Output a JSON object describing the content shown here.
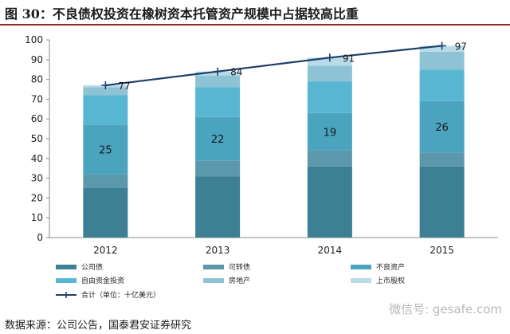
{
  "title": "图 30：不良债权投资在橡树资本托管资产规模中占据较高比重",
  "source": "数据来源：公司公告，国泰君安证券研究",
  "watermark": "微信号: gesafe.com",
  "chart_data": {
    "type": "bar",
    "stacked": true,
    "categories": [
      "2012",
      "2013",
      "2014",
      "2015"
    ],
    "ylim": [
      0,
      100
    ],
    "yticks": [
      0,
      10,
      20,
      30,
      40,
      50,
      60,
      70,
      80,
      90,
      100
    ],
    "grid": false,
    "legend_position": "bottom",
    "series": [
      {
        "name": "公司债",
        "color": "#3d7f93",
        "values": [
          25,
          31,
          36,
          36
        ]
      },
      {
        "name": "可转债",
        "color": "#5b98ab",
        "values": [
          7,
          8,
          8,
          7
        ]
      },
      {
        "name": "不良资产",
        "color": "#4aa3bf",
        "values": [
          25,
          22,
          19,
          26
        ]
      },
      {
        "name": "自由资金投资",
        "color": "#59b6d2",
        "values": [
          15,
          15,
          16,
          16
        ]
      },
      {
        "name": "房地产",
        "color": "#8ec3d6",
        "values": [
          4,
          6,
          8,
          9
        ]
      },
      {
        "name": "上市股权",
        "color": "#b9dbe8",
        "values": [
          1,
          2,
          4,
          3
        ]
      }
    ],
    "value_labels_series": "不良资产",
    "line": {
      "name": "合计（单位：十亿美元）",
      "color": "#1f3f6b",
      "values": [
        77,
        84,
        91,
        97
      ],
      "labels": [
        "77",
        "84",
        "91",
        "97"
      ]
    }
  }
}
